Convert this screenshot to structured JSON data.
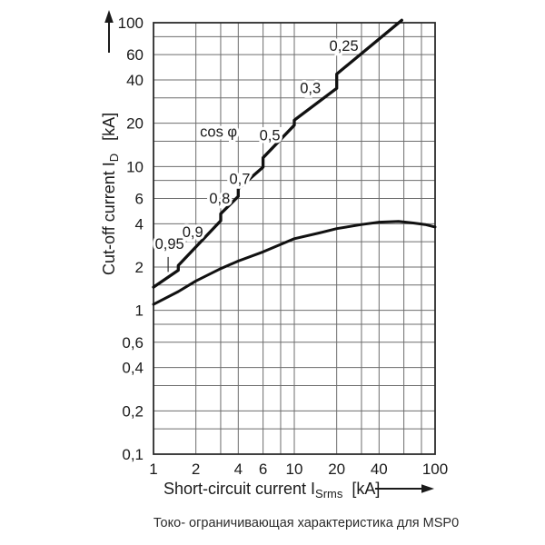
{
  "caption": "Токо- ограничивающая характеристика для MSP0",
  "chart_data": {
    "type": "line",
    "title": "",
    "x_axis": {
      "label": "Short-circuit current I",
      "label_sub": "Srms",
      "label_unit": "[kA]",
      "scale": "log",
      "range": [
        1,
        100
      ],
      "grid_multipliers": [
        1,
        2,
        3,
        4,
        6,
        8
      ],
      "ticks": [
        {
          "v": 1,
          "t": "1"
        },
        {
          "v": 2,
          "t": "2"
        },
        {
          "v": 4,
          "t": "4"
        },
        {
          "v": 6,
          "t": "6"
        },
        {
          "v": 10,
          "t": "10"
        },
        {
          "v": 20,
          "t": "20"
        },
        {
          "v": 40,
          "t": "40"
        },
        {
          "v": 100,
          "t": "100"
        }
      ]
    },
    "y_axis": {
      "label": "Cut-off current I",
      "label_sub": "D",
      "label_unit": "[kA]",
      "scale": "log",
      "range": [
        0.1,
        100
      ],
      "grid_multipliers": [
        1,
        1.5,
        2,
        3,
        4,
        6,
        8
      ],
      "ticks": [
        {
          "v": 100,
          "t": "100"
        },
        {
          "v": 60,
          "t": "60"
        },
        {
          "v": 40,
          "t": "40"
        },
        {
          "v": 20,
          "t": "20"
        },
        {
          "v": 10,
          "t": "10"
        },
        {
          "v": 6,
          "t": "6"
        },
        {
          "v": 4,
          "t": "4"
        },
        {
          "v": 2,
          "t": "2"
        },
        {
          "v": 1,
          "t": "1"
        },
        {
          "v": 0.6,
          "t": "0,6"
        },
        {
          "v": 0.4,
          "t": "0,4"
        },
        {
          "v": 0.2,
          "t": "0,2"
        },
        {
          "v": 0.1,
          "t": "0,1"
        }
      ]
    },
    "series": [
      {
        "name": "cos-phi-stepped-curve",
        "points": [
          [
            1,
            1.45
          ],
          [
            1.5,
            1.9
          ],
          [
            1.5,
            2.05
          ],
          [
            3,
            4.2
          ],
          [
            3,
            4.7
          ],
          [
            4,
            6.2
          ],
          [
            4,
            7.0
          ],
          [
            6,
            9.9
          ],
          [
            6,
            11.5
          ],
          [
            10,
            19.4
          ],
          [
            10,
            21
          ],
          [
            20,
            35
          ],
          [
            20,
            44
          ],
          [
            58,
            104
          ]
        ]
      },
      {
        "name": "let-through-smooth-curve",
        "points": [
          [
            1,
            1.1
          ],
          [
            1.5,
            1.35
          ],
          [
            2,
            1.6
          ],
          [
            3,
            1.95
          ],
          [
            4,
            2.2
          ],
          [
            6,
            2.55
          ],
          [
            10,
            3.15
          ],
          [
            15,
            3.45
          ],
          [
            20,
            3.7
          ],
          [
            30,
            3.95
          ],
          [
            40,
            4.1
          ],
          [
            55,
            4.15
          ],
          [
            70,
            4.05
          ],
          [
            85,
            3.95
          ],
          [
            100,
            3.8
          ]
        ]
      }
    ],
    "annotations": [
      {
        "text": "cos φ",
        "x": 2.9,
        "y": 17.5
      },
      {
        "text": "0,95",
        "x": 1.3,
        "y": 2.9
      },
      {
        "text": "0,9",
        "x": 1.9,
        "y": 3.5
      },
      {
        "text": "0,8",
        "x": 2.95,
        "y": 6.0
      },
      {
        "text": "0,7",
        "x": 4.1,
        "y": 8.2
      },
      {
        "text": "0,5",
        "x": 6.7,
        "y": 16.5
      },
      {
        "text": "0,3",
        "x": 13,
        "y": 35
      },
      {
        "text": "0,25",
        "x": 22.5,
        "y": 69
      }
    ],
    "leader_line": {
      "x": 1.27,
      "y1": 2.35,
      "y2": 1.85
    },
    "colors": {
      "grid": "#6d6d6d",
      "frame": "#2b2b2b",
      "curve": "#111111",
      "text": "#1a1a1a"
    }
  }
}
